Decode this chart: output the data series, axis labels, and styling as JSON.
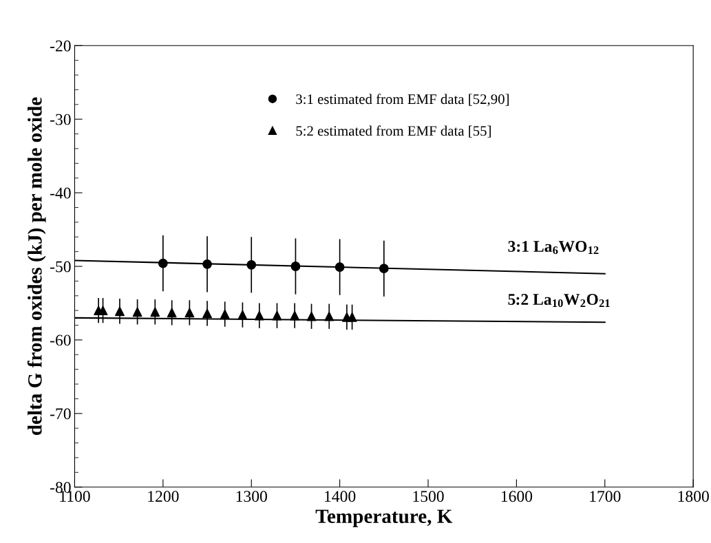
{
  "chart_data": {
    "type": "scatter",
    "xlabel": "Temperature, K",
    "ylabel": "delta G from oxides (kJ) per mole oxide",
    "xlim": [
      1100,
      1800
    ],
    "xticks": [
      1100,
      1200,
      1300,
      1400,
      1500,
      1600,
      1700,
      1800
    ],
    "ylim": [
      -80,
      -20
    ],
    "yticks": [
      -80,
      -70,
      -60,
      -50,
      -40,
      -30,
      -20
    ],
    "grid": false,
    "legend": "top",
    "series": [
      {
        "name": "3:1 estimated from EMF data [52,90]",
        "marker": "circle",
        "color": "#000000",
        "x": [
          1200,
          1250,
          1300,
          1350,
          1400,
          1450
        ],
        "values": [
          -49.6,
          -49.7,
          -49.8,
          -50.0,
          -50.1,
          -50.3
        ],
        "errors": [
          3.8,
          3.8,
          3.8,
          3.8,
          3.8,
          3.8
        ]
      },
      {
        "name": "5:2 estimated from EMF data [55]",
        "marker": "triangle",
        "color": "#000000",
        "x": [
          1127,
          1132,
          1151,
          1171,
          1191,
          1210,
          1230,
          1250,
          1270,
          1290,
          1309,
          1329,
          1349,
          1368,
          1388,
          1408,
          1414
        ],
        "values": [
          -56.0,
          -56.0,
          -56.1,
          -56.2,
          -56.2,
          -56.3,
          -56.3,
          -56.4,
          -56.5,
          -56.6,
          -56.7,
          -56.7,
          -56.7,
          -56.8,
          -56.8,
          -56.9,
          -56.9
        ],
        "errors": [
          1.7,
          1.7,
          1.7,
          1.7,
          1.7,
          1.7,
          1.7,
          1.7,
          1.7,
          1.7,
          1.7,
          1.7,
          1.7,
          1.7,
          1.7,
          1.7,
          1.7
        ]
      },
      {
        "type": "line",
        "color": "#000000",
        "x": [
          1100,
          1700
        ],
        "values": [
          -49.2,
          -51.0
        ]
      },
      {
        "type": "line",
        "color": "#000000",
        "x": [
          1100,
          1700
        ],
        "values": [
          -57.0,
          -57.6
        ]
      }
    ],
    "annotations": [
      "3:1 La$_{6}$WO$_{12}$",
      "5:2 La$_{10}$W$_{2}$O$_{21}$"
    ]
  }
}
